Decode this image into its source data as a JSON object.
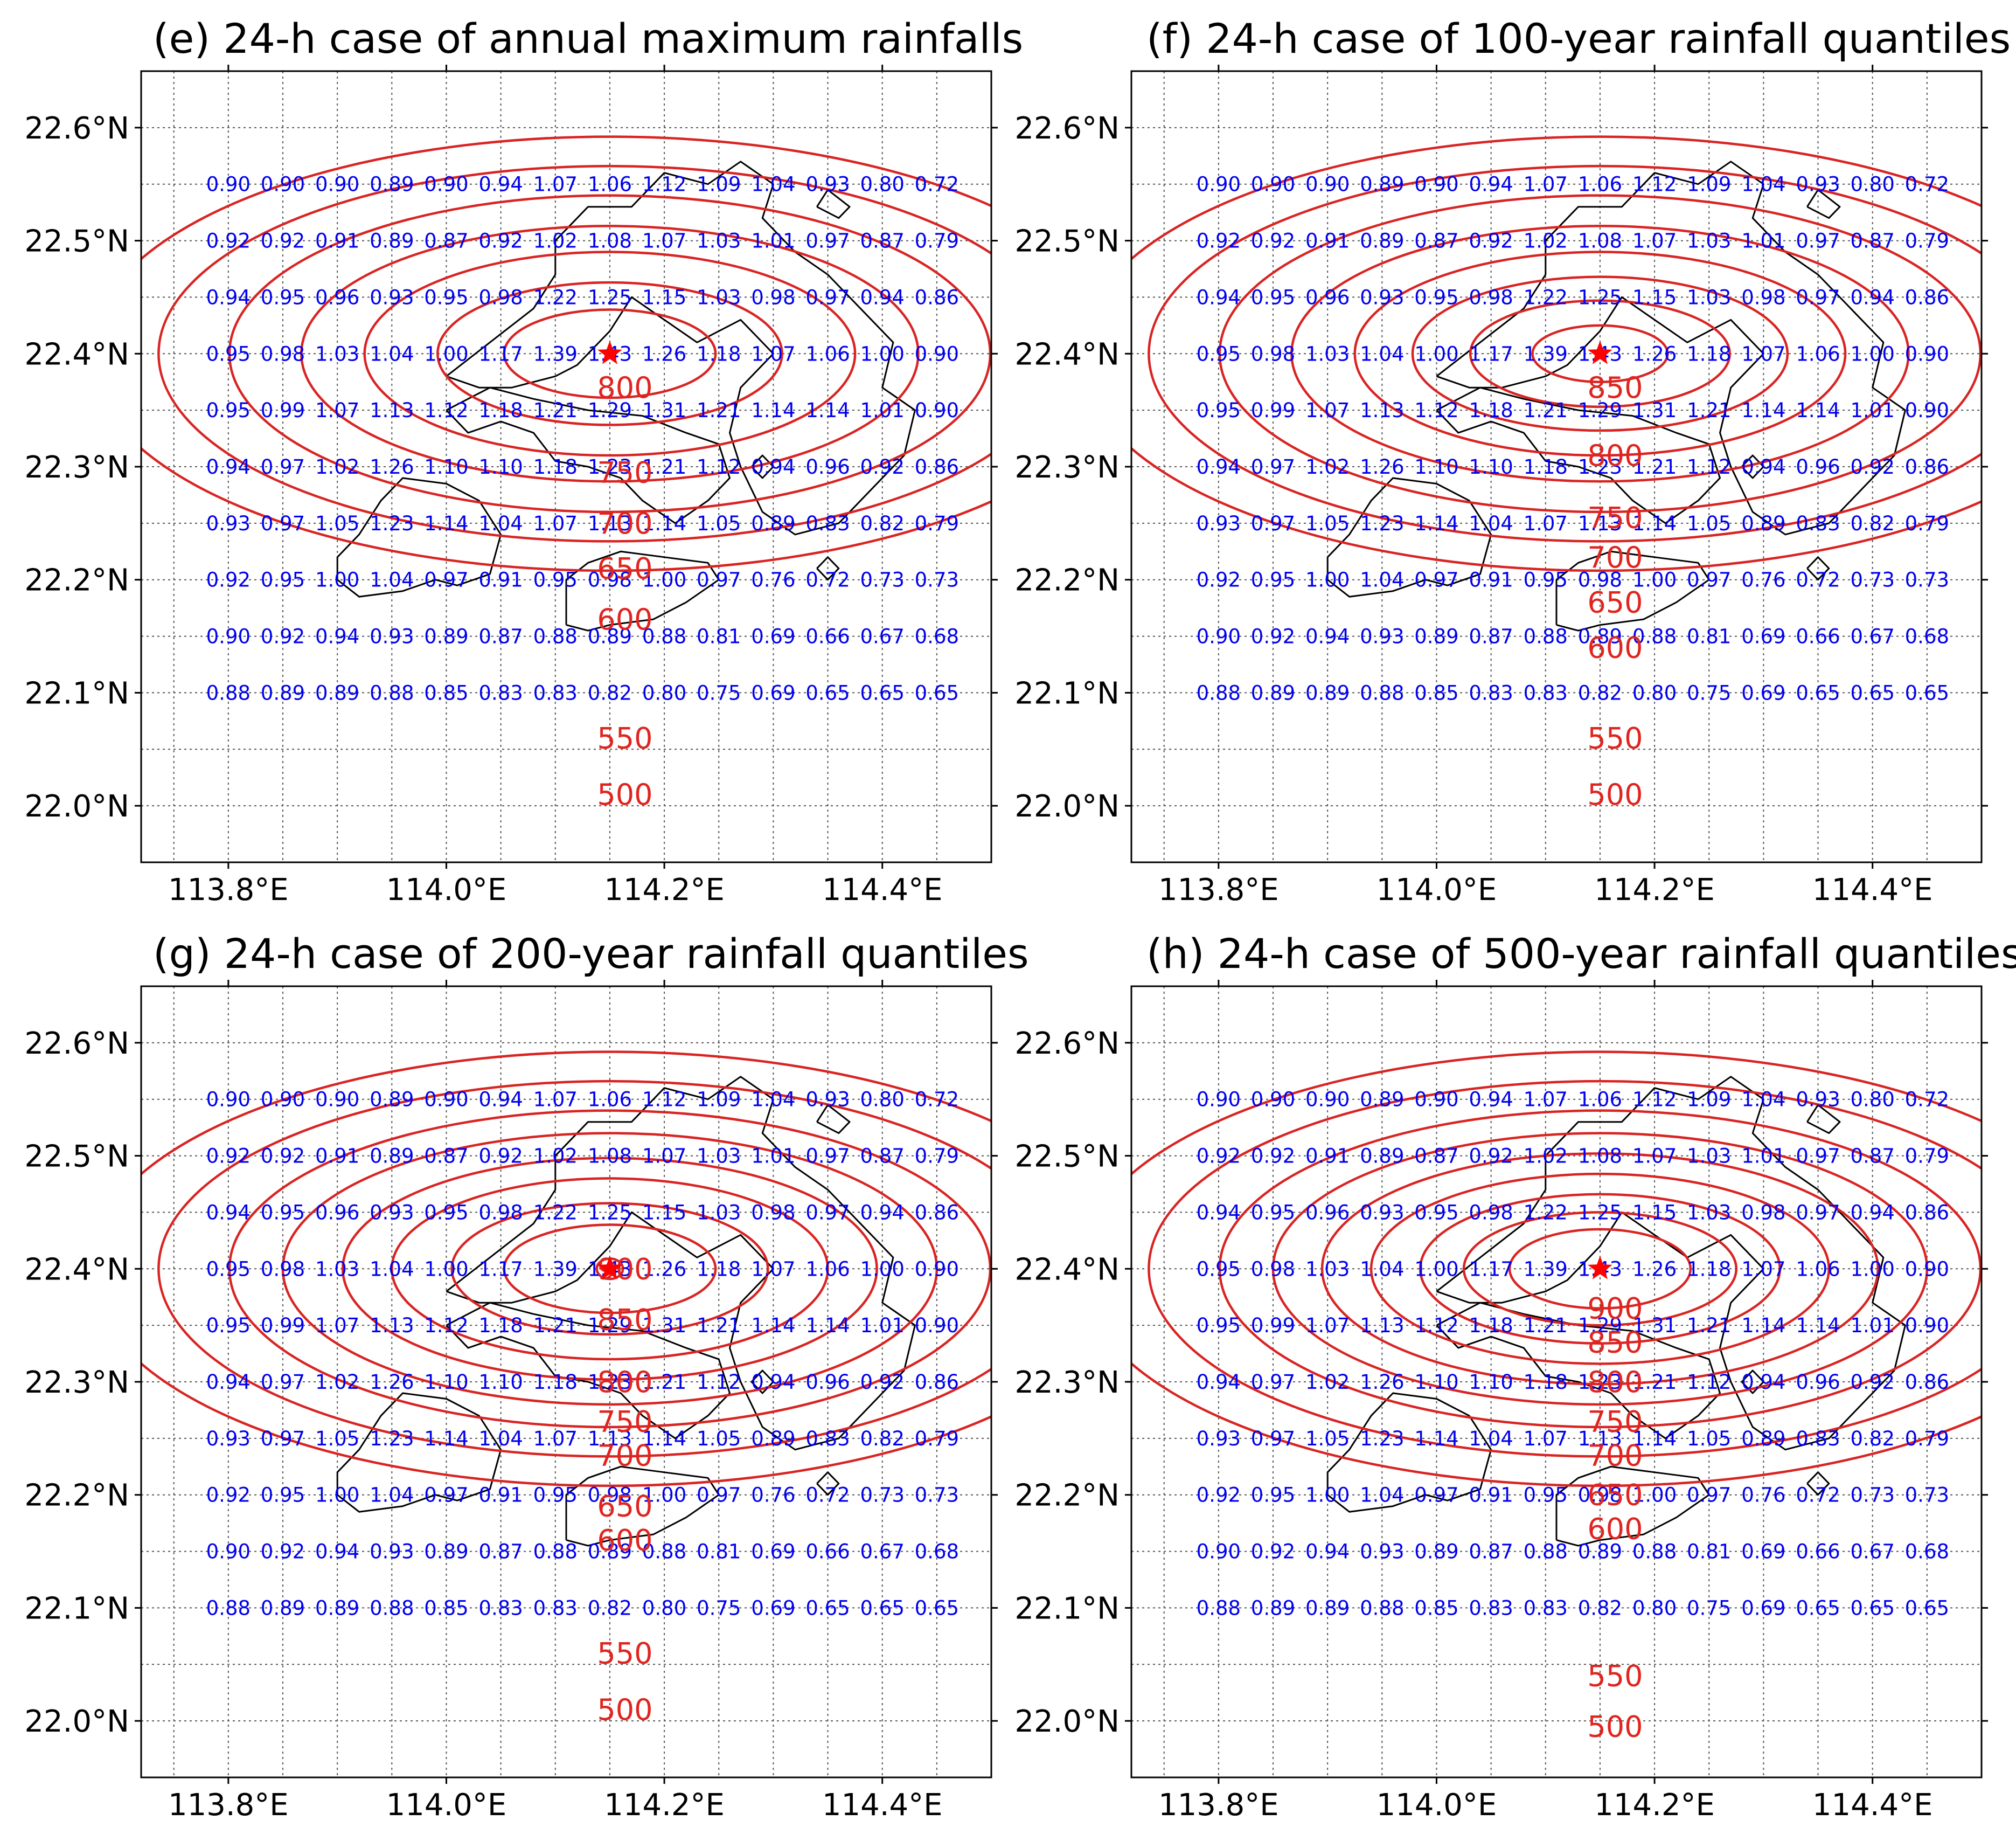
{
  "colors": {
    "contour": "#d92424",
    "ratio_text": "#0000ee",
    "star": "#ff0000",
    "coastline": "#000000",
    "grid": "#555555"
  },
  "map": {
    "lon_range": [
      113.72,
      114.5
    ],
    "lat_range": [
      21.95,
      22.65
    ],
    "lon_ticks": [
      113.8,
      114.0,
      114.2,
      114.4
    ],
    "lon_tick_labels": [
      "113.8°E",
      "114.0°E",
      "114.2°E",
      "114.4°E"
    ],
    "lat_ticks": [
      22.0,
      22.1,
      22.2,
      22.3,
      22.4,
      22.5,
      22.6
    ],
    "lat_tick_labels": [
      "22.0°N",
      "22.1°N",
      "22.2°N",
      "22.3°N",
      "22.4°N",
      "22.5°N",
      "22.6°N"
    ],
    "storm_center": {
      "lon": 114.15,
      "lat": 22.4,
      "marker": "star-icon"
    },
    "ratio_grid": {
      "lons": [
        113.8,
        113.85,
        113.9,
        113.95,
        114.0,
        114.05,
        114.1,
        114.15,
        114.2,
        114.25,
        114.3,
        114.35,
        114.4,
        114.45
      ],
      "lats": [
        22.55,
        22.5,
        22.45,
        22.4,
        22.35,
        22.3,
        22.25,
        22.2,
        22.15,
        22.1
      ],
      "values": [
        [
          "0.90",
          "0.90",
          "0.90",
          "0.89",
          "0.90",
          "0.94",
          "1.07",
          "1.06",
          "1.12",
          "1.09",
          "1.04",
          "0.93",
          "0.80",
          "0.72"
        ],
        [
          "0.92",
          "0.92",
          "0.91",
          "0.89",
          "0.87",
          "0.92",
          "1.02",
          "1.08",
          "1.07",
          "1.03",
          "1.01",
          "0.97",
          "0.87",
          "0.79"
        ],
        [
          "0.94",
          "0.95",
          "0.96",
          "0.93",
          "0.95",
          "0.98",
          "1.22",
          "1.25",
          "1.15",
          "1.03",
          "0.98",
          "0.97",
          "0.94",
          "0.86"
        ],
        [
          "0.95",
          "0.98",
          "1.03",
          "1.04",
          "1.00",
          "1.17",
          "1.39",
          "1.43",
          "1.26",
          "1.18",
          "1.07",
          "1.06",
          "1.00",
          "0.90"
        ],
        [
          "0.95",
          "0.99",
          "1.07",
          "1.13",
          "1.12",
          "1.18",
          "1.21",
          "1.29",
          "1.31",
          "1.21",
          "1.14",
          "1.14",
          "1.01",
          "0.90"
        ],
        [
          "0.94",
          "0.97",
          "1.02",
          "1.26",
          "1.10",
          "1.10",
          "1.18",
          "1.23",
          "1.21",
          "1.12",
          "0.94",
          "0.96",
          "0.92",
          "0.86"
        ],
        [
          "0.93",
          "0.97",
          "1.05",
          "1.23",
          "1.14",
          "1.04",
          "1.07",
          "1.13",
          "1.14",
          "1.05",
          "0.89",
          "0.83",
          "0.82",
          "0.79"
        ],
        [
          "0.92",
          "0.95",
          "1.00",
          "1.04",
          "0.97",
          "0.91",
          "0.95",
          "0.98",
          "1.00",
          "0.97",
          "0.76",
          "0.72",
          "0.73",
          "0.73"
        ],
        [
          "0.90",
          "0.92",
          "0.94",
          "0.93",
          "0.89",
          "0.87",
          "0.88",
          "0.89",
          "0.88",
          "0.81",
          "0.69",
          "0.66",
          "0.67",
          "0.68"
        ],
        [
          "0.88",
          "0.89",
          "0.89",
          "0.88",
          "0.85",
          "0.83",
          "0.83",
          "0.82",
          "0.80",
          "0.75",
          "0.69",
          "0.65",
          "0.65",
          "0.65"
        ]
      ]
    }
  },
  "panels": [
    {
      "id": "e",
      "title": "(e) 24-h case of annual maximum rainfalls",
      "contours": [
        {
          "value": 500,
          "label": "500",
          "a": 0.478,
          "b": 0.192,
          "label_lat": 22.01
        },
        {
          "value": 550,
          "label": "550",
          "a": 0.414,
          "b": 0.166,
          "label_lat": 22.06
        },
        {
          "value": 600,
          "label": "600",
          "a": 0.349,
          "b": 0.14,
          "label_lat": 22.165
        },
        {
          "value": 650,
          "label": "650",
          "a": 0.283,
          "b": 0.113,
          "label_lat": 22.21
        },
        {
          "value": 700,
          "label": "700",
          "a": 0.225,
          "b": 0.09,
          "label_lat": 22.25
        },
        {
          "value": 750,
          "label": "750",
          "a": 0.158,
          "b": 0.063,
          "label_lat": 22.295
        },
        {
          "value": 800,
          "label": "800",
          "a": 0.097,
          "b": 0.039,
          "label_lat": 22.37
        }
      ]
    },
    {
      "id": "f",
      "title": "(f) 24-h case of 100-year rainfall quantiles",
      "contours": [
        {
          "value": 500,
          "label": "500",
          "a": 0.478,
          "b": 0.192,
          "label_lat": 22.01
        },
        {
          "value": 550,
          "label": "550",
          "a": 0.414,
          "b": 0.166,
          "label_lat": 22.06
        },
        {
          "value": 600,
          "label": "600",
          "a": 0.349,
          "b": 0.14,
          "label_lat": 22.14
        },
        {
          "value": 650,
          "label": "650",
          "a": 0.283,
          "b": 0.113,
          "label_lat": 22.18
        },
        {
          "value": 700,
          "label": "700",
          "a": 0.225,
          "b": 0.09,
          "label_lat": 22.22
        },
        {
          "value": 750,
          "label": "750",
          "a": 0.172,
          "b": 0.068,
          "label_lat": 22.255
        },
        {
          "value": 800,
          "label": "800",
          "a": 0.119,
          "b": 0.047,
          "label_lat": 22.31
        },
        {
          "value": 850,
          "label": "850",
          "a": 0.062,
          "b": 0.025,
          "label_lat": 22.37
        }
      ]
    },
    {
      "id": "g",
      "title": "(g) 24-h case of 200-year rainfall quantiles",
      "contours": [
        {
          "value": 500,
          "label": "500",
          "a": 0.478,
          "b": 0.192,
          "label_lat": 22.01
        },
        {
          "value": 550,
          "label": "550",
          "a": 0.414,
          "b": 0.166,
          "label_lat": 22.06
        },
        {
          "value": 600,
          "label": "600",
          "a": 0.349,
          "b": 0.14,
          "label_lat": 22.16
        },
        {
          "value": 650,
          "label": "650",
          "a": 0.3,
          "b": 0.12,
          "label_lat": 22.19
        },
        {
          "value": 700,
          "label": "700",
          "a": 0.245,
          "b": 0.098,
          "label_lat": 22.235
        },
        {
          "value": 750,
          "label": "750",
          "a": 0.2,
          "b": 0.08,
          "label_lat": 22.265
        },
        {
          "value": 800,
          "label": "800",
          "a": 0.145,
          "b": 0.058,
          "label_lat": 22.3
        },
        {
          "value": 850,
          "label": "850",
          "a": 0.097,
          "b": 0.039,
          "label_lat": 22.355
        },
        {
          "value": 900,
          "label": "900",
          "a": 0.012,
          "b": 0.009,
          "label_lat": 22.4
        }
      ]
    },
    {
      "id": "h",
      "title": "(h) 24-h case of 500-year rainfall quantiles",
      "contours": [
        {
          "value": 500,
          "label": "500",
          "a": 0.478,
          "b": 0.192,
          "label_lat": 21.995
        },
        {
          "value": 550,
          "label": "550",
          "a": 0.414,
          "b": 0.166,
          "label_lat": 22.04
        },
        {
          "value": 600,
          "label": "600",
          "a": 0.349,
          "b": 0.14,
          "label_lat": 22.17
        },
        {
          "value": 650,
          "label": "650",
          "a": 0.3,
          "b": 0.12,
          "label_lat": 22.2
        },
        {
          "value": 700,
          "label": "700",
          "a": 0.255,
          "b": 0.102,
          "label_lat": 22.235
        },
        {
          "value": 750,
          "label": "750",
          "a": 0.21,
          "b": 0.084,
          "label_lat": 22.265
        },
        {
          "value": 800,
          "label": "800",
          "a": 0.165,
          "b": 0.066,
          "label_lat": 22.3
        },
        {
          "value": 850,
          "label": "850",
          "a": 0.125,
          "b": 0.05,
          "label_lat": 22.335
        },
        {
          "value": 900,
          "label": "900",
          "a": 0.083,
          "b": 0.035,
          "label_lat": 22.365
        }
      ]
    }
  ],
  "coastline": [
    [
      [
        113.9,
        22.2
      ],
      [
        113.92,
        22.185
      ],
      [
        113.96,
        22.19
      ],
      [
        113.99,
        22.2
      ],
      [
        114.01,
        22.195
      ],
      [
        114.04,
        22.205
      ],
      [
        114.05,
        22.24
      ],
      [
        114.03,
        22.27
      ],
      [
        114.0,
        22.285
      ],
      [
        113.96,
        22.29
      ],
      [
        113.94,
        22.27
      ],
      [
        113.92,
        22.24
      ],
      [
        113.9,
        22.22
      ],
      [
        113.9,
        22.2
      ]
    ],
    [
      [
        114.11,
        22.16
      ],
      [
        114.13,
        22.155
      ],
      [
        114.15,
        22.16
      ],
      [
        114.19,
        22.165
      ],
      [
        114.22,
        22.18
      ],
      [
        114.25,
        22.2
      ],
      [
        114.24,
        22.215
      ],
      [
        114.2,
        22.22
      ],
      [
        114.16,
        22.225
      ],
      [
        114.13,
        22.215
      ],
      [
        114.11,
        22.2
      ],
      [
        114.11,
        22.16
      ]
    ],
    [
      [
        114.0,
        22.35
      ],
      [
        114.04,
        22.37
      ],
      [
        114.08,
        22.36
      ],
      [
        114.13,
        22.35
      ],
      [
        114.18,
        22.345
      ],
      [
        114.22,
        22.33
      ],
      [
        114.25,
        22.32
      ],
      [
        114.26,
        22.29
      ],
      [
        114.24,
        22.27
      ],
      [
        114.21,
        22.25
      ],
      [
        114.18,
        22.27
      ],
      [
        114.16,
        22.29
      ],
      [
        114.13,
        22.3
      ],
      [
        114.1,
        22.305
      ],
      [
        114.08,
        22.33
      ],
      [
        114.05,
        22.34
      ],
      [
        114.02,
        22.33
      ],
      [
        114.0,
        22.35
      ]
    ],
    [
      [
        114.0,
        22.38
      ],
      [
        114.04,
        22.41
      ],
      [
        114.08,
        22.44
      ],
      [
        114.1,
        22.47
      ],
      [
        114.1,
        22.5
      ],
      [
        114.13,
        22.53
      ],
      [
        114.17,
        22.53
      ],
      [
        114.2,
        22.56
      ],
      [
        114.24,
        22.55
      ],
      [
        114.27,
        22.57
      ],
      [
        114.3,
        22.55
      ],
      [
        114.29,
        22.52
      ],
      [
        114.32,
        22.49
      ],
      [
        114.35,
        22.47
      ],
      [
        114.38,
        22.44
      ],
      [
        114.41,
        22.41
      ],
      [
        114.4,
        22.37
      ],
      [
        114.43,
        22.35
      ],
      [
        114.42,
        22.31
      ],
      [
        114.39,
        22.28
      ],
      [
        114.36,
        22.25
      ],
      [
        114.32,
        22.24
      ],
      [
        114.29,
        22.26
      ],
      [
        114.27,
        22.3
      ],
      [
        114.26,
        22.33
      ],
      [
        114.27,
        22.37
      ],
      [
        114.3,
        22.4
      ],
      [
        114.27,
        22.43
      ],
      [
        114.23,
        22.41
      ],
      [
        114.2,
        22.43
      ],
      [
        114.17,
        22.45
      ],
      [
        114.15,
        22.42
      ],
      [
        114.12,
        22.39
      ],
      [
        114.1,
        22.38
      ],
      [
        114.06,
        22.37
      ],
      [
        114.03,
        22.37
      ],
      [
        114.0,
        22.38
      ]
    ],
    [
      [
        114.34,
        22.53
      ],
      [
        114.36,
        22.52
      ],
      [
        114.37,
        22.53
      ],
      [
        114.35,
        22.545
      ],
      [
        114.34,
        22.53
      ]
    ],
    [
      [
        114.34,
        22.21
      ],
      [
        114.35,
        22.2
      ],
      [
        114.36,
        22.21
      ],
      [
        114.35,
        22.22
      ],
      [
        114.34,
        22.21
      ]
    ],
    [
      [
        114.28,
        22.3
      ],
      [
        114.29,
        22.29
      ],
      [
        114.3,
        22.3
      ],
      [
        114.29,
        22.31
      ],
      [
        114.28,
        22.3
      ]
    ]
  ]
}
